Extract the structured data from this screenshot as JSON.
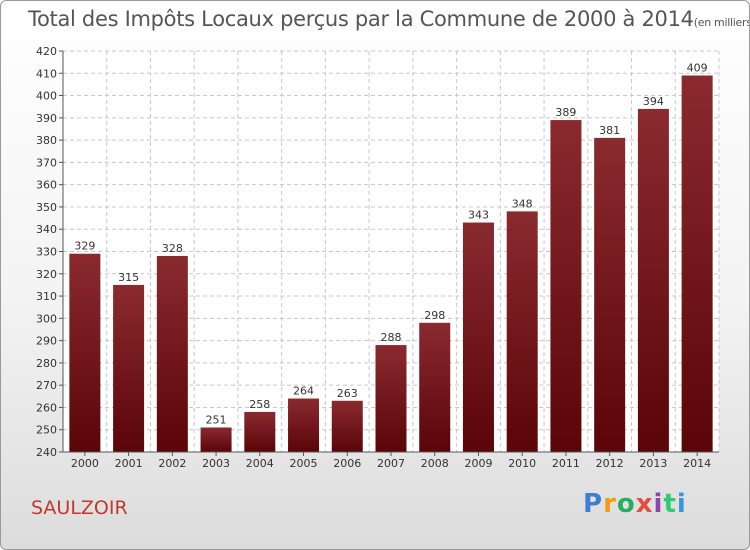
{
  "chart_data": {
    "type": "bar",
    "title": "Total des Impôts Locaux perçus par la Commune de 2000 à 2014",
    "unit_note": "(en milliers d'€)",
    "categories": [
      "2000",
      "2001",
      "2002",
      "2003",
      "2004",
      "2005",
      "2006",
      "2007",
      "2008",
      "2009",
      "2010",
      "2011",
      "2012",
      "2013",
      "2014"
    ],
    "values": [
      329,
      315,
      328,
      251,
      258,
      264,
      263,
      288,
      298,
      343,
      348,
      389,
      381,
      394,
      409
    ],
    "ylim": [
      240,
      420
    ],
    "ytick_step": 10,
    "grid": true,
    "bar_color": "#6e1117"
  },
  "commune_name": "SAULZOIR",
  "logo": [
    "P",
    "r",
    "o",
    "x",
    "i",
    "t",
    "i"
  ]
}
